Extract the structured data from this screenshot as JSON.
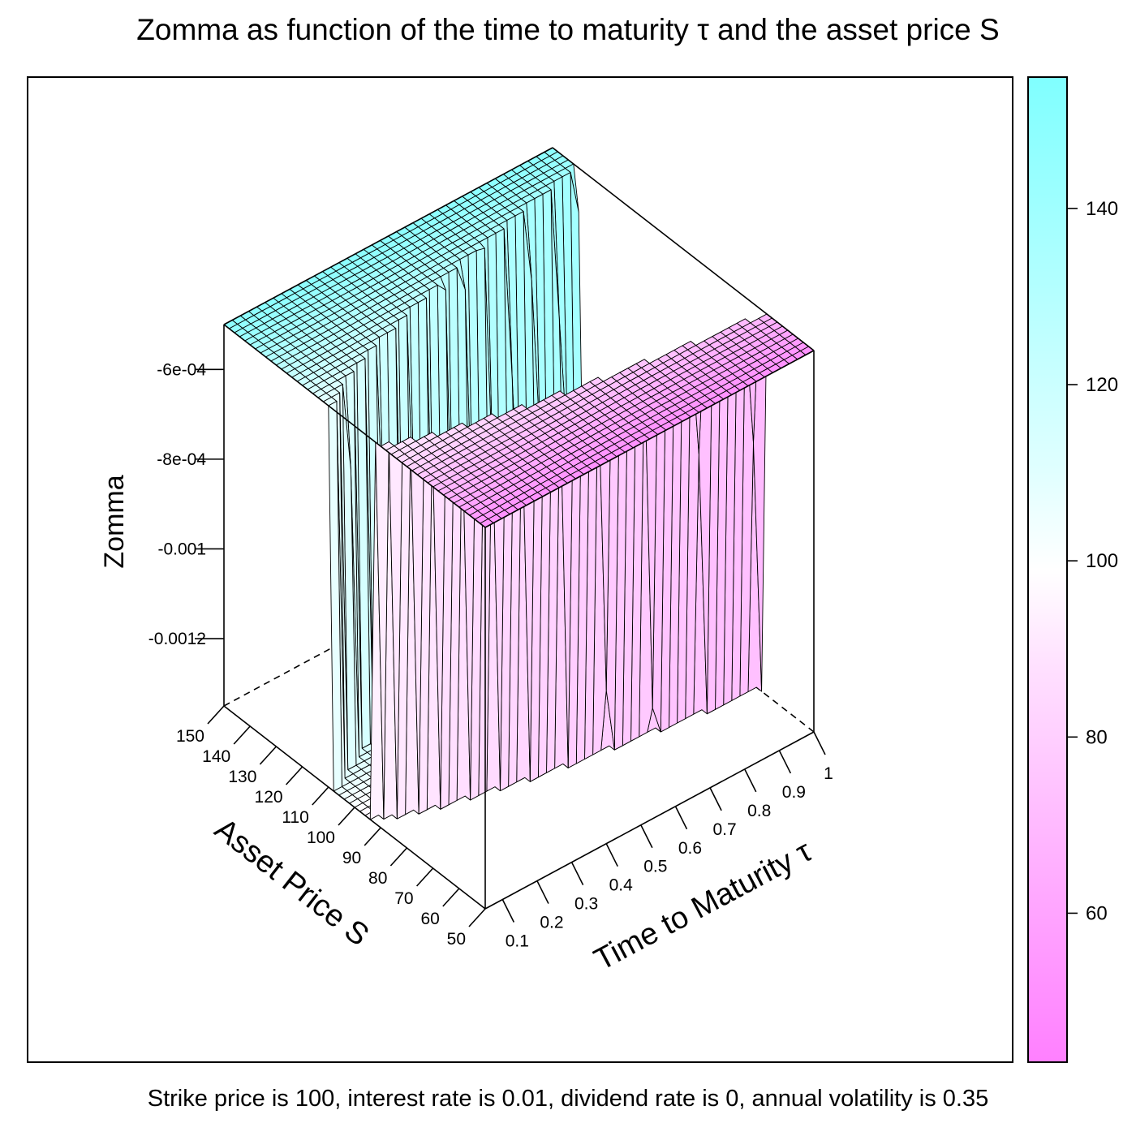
{
  "title": "Zomma as function of the time to maturity τ and the asset price S",
  "caption": "Strike price is 100, interest rate is 0.01, dividend rate is 0, annual volatility is 0.35",
  "chart_data": {
    "type": "surface",
    "title": "Zomma as function of the time to maturity τ and the asset price S",
    "xlabel": "Time to Maturity  τ",
    "ylabel": "Asset Price S",
    "zlabel": "Zomma",
    "x_ticks": [
      "0.1",
      "0.2",
      "0.3",
      "0.4",
      "0.5",
      "0.6",
      "0.7",
      "0.8",
      "0.9",
      "1"
    ],
    "y_ticks": [
      "50",
      "60",
      "70",
      "80",
      "90",
      "100",
      "110",
      "120",
      "130",
      "140",
      "150"
    ],
    "z_ticks": [
      "-6e-04",
      "-8e-04",
      "-0.001",
      "-0.0012"
    ],
    "xlim": [
      0.05,
      1.0
    ],
    "ylim": [
      50,
      150
    ],
    "zlim": [
      -0.00135,
      -0.0005
    ],
    "colorkey": {
      "ticks": [
        "60",
        "80",
        "100",
        "120",
        "140"
      ],
      "range": [
        43,
        155
      ],
      "colors": {
        "low": "#ff80ff",
        "mid": "#ffffff",
        "high": "#80ffff"
      }
    },
    "parameters": {
      "strike": 100,
      "rate": 0.01,
      "dividend": 0,
      "volatility": 0.35
    }
  }
}
